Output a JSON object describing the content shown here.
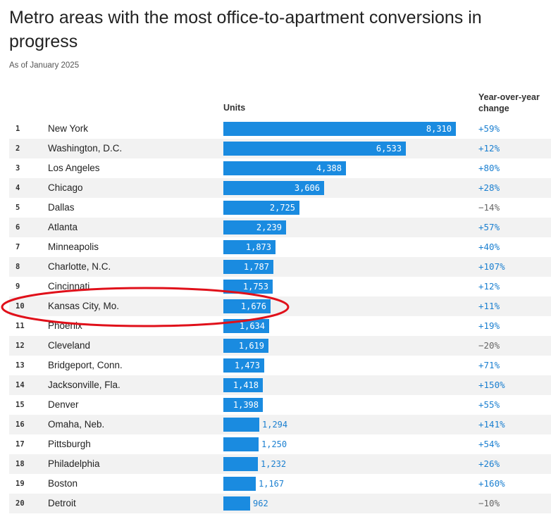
{
  "chart_data": {
    "type": "bar",
    "title": "Metro areas with the most office-to-apartment conversions in progress",
    "subtitle": "As of January 2025",
    "col_units": "Units",
    "col_change": "Year-over-year change",
    "max_value": 8310,
    "rows": [
      {
        "rank": "1",
        "name": "New York",
        "units": 8310,
        "units_label": "8,310",
        "change": "+59%",
        "positive": true
      },
      {
        "rank": "2",
        "name": "Washington, D.C.",
        "units": 6533,
        "units_label": "6,533",
        "change": "+12%",
        "positive": true
      },
      {
        "rank": "3",
        "name": "Los Angeles",
        "units": 4388,
        "units_label": "4,388",
        "change": "+80%",
        "positive": true
      },
      {
        "rank": "4",
        "name": "Chicago",
        "units": 3606,
        "units_label": "3,606",
        "change": "+28%",
        "positive": true
      },
      {
        "rank": "5",
        "name": "Dallas",
        "units": 2725,
        "units_label": "2,725",
        "change": "−14%",
        "positive": false
      },
      {
        "rank": "6",
        "name": "Atlanta",
        "units": 2239,
        "units_label": "2,239",
        "change": "+57%",
        "positive": true
      },
      {
        "rank": "7",
        "name": "Minneapolis",
        "units": 1873,
        "units_label": "1,873",
        "change": "+40%",
        "positive": true
      },
      {
        "rank": "8",
        "name": "Charlotte, N.C.",
        "units": 1787,
        "units_label": "1,787",
        "change": "+107%",
        "positive": true
      },
      {
        "rank": "9",
        "name": "Cincinnati",
        "units": 1753,
        "units_label": "1,753",
        "change": "+12%",
        "positive": true
      },
      {
        "rank": "10",
        "name": "Kansas City, Mo.",
        "units": 1676,
        "units_label": "1,676",
        "change": "+11%",
        "positive": true
      },
      {
        "rank": "11",
        "name": "Phoenix",
        "units": 1634,
        "units_label": "1,634",
        "change": "+19%",
        "positive": true
      },
      {
        "rank": "12",
        "name": "Cleveland",
        "units": 1619,
        "units_label": "1,619",
        "change": "−20%",
        "positive": false
      },
      {
        "rank": "13",
        "name": "Bridgeport, Conn.",
        "units": 1473,
        "units_label": "1,473",
        "change": "+71%",
        "positive": true
      },
      {
        "rank": "14",
        "name": "Jacksonville, Fla.",
        "units": 1418,
        "units_label": "1,418",
        "change": "+150%",
        "positive": true
      },
      {
        "rank": "15",
        "name": "Denver",
        "units": 1398,
        "units_label": "1,398",
        "change": "+55%",
        "positive": true
      },
      {
        "rank": "16",
        "name": "Omaha, Neb.",
        "units": 1294,
        "units_label": "1,294",
        "change": "+141%",
        "positive": true
      },
      {
        "rank": "17",
        "name": "Pittsburgh",
        "units": 1250,
        "units_label": "1,250",
        "change": "+54%",
        "positive": true
      },
      {
        "rank": "18",
        "name": "Philadelphia",
        "units": 1232,
        "units_label": "1,232",
        "change": "+26%",
        "positive": true
      },
      {
        "rank": "19",
        "name": "Boston",
        "units": 1167,
        "units_label": "1,167",
        "change": "+160%",
        "positive": true
      },
      {
        "rank": "20",
        "name": "Detroit",
        "units": 962,
        "units_label": "962",
        "change": "−10%",
        "positive": false
      }
    ],
    "highlight_rank": "10",
    "colors": {
      "bar": "#1a8be0",
      "positive": "#1a7fd0",
      "negative": "#666666",
      "highlight": "#e0101a"
    }
  }
}
